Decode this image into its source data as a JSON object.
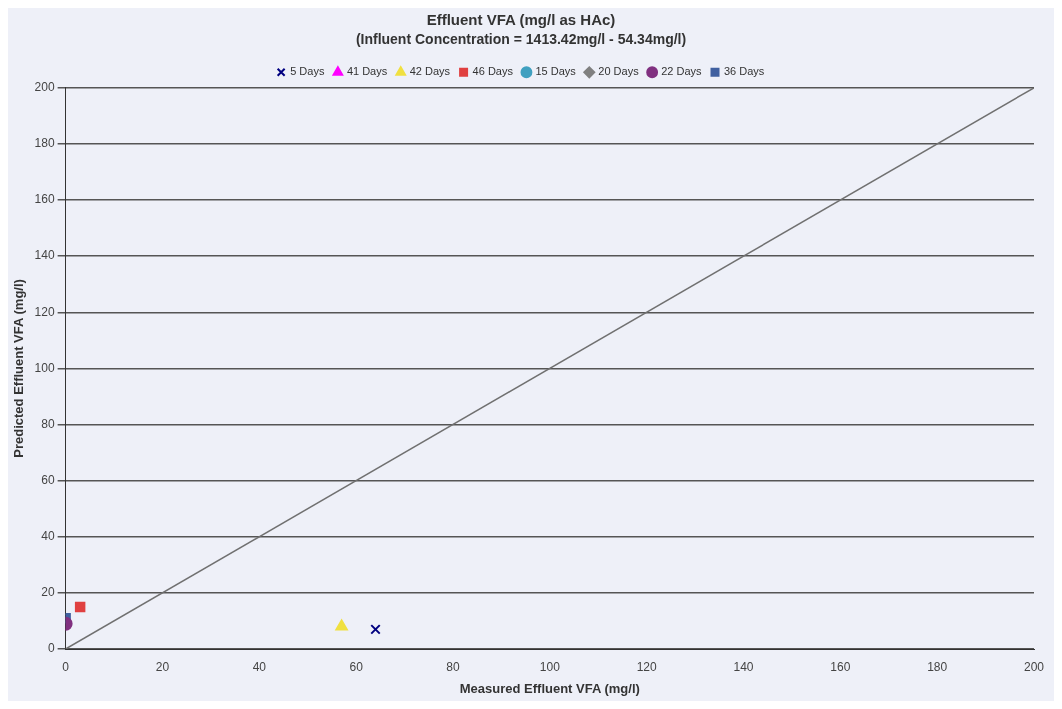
{
  "chart_data": {
    "type": "scatter",
    "title": "Effluent VFA (mg/l as HAc)",
    "subtitle": "(Influent Concentration = 1413.42mg/l - 54.34mg/l)",
    "xlabel": "Measured Effluent VFA (mg/l)",
    "ylabel": "Predicted Effluent VFA (mg/l)",
    "xlim": [
      0,
      200
    ],
    "ylim": [
      0,
      200
    ],
    "xticks": [
      0,
      20,
      40,
      60,
      80,
      100,
      120,
      140,
      160,
      180,
      200
    ],
    "yticks": [
      0,
      20,
      40,
      60,
      80,
      100,
      120,
      140,
      160,
      180,
      200
    ],
    "grid": "y",
    "legend": "top",
    "series": [
      {
        "name": "5 Days",
        "color": "#000080",
        "marker": "cross",
        "x": [
          64
        ],
        "values": [
          7
        ]
      },
      {
        "name": "41 Days",
        "color": "#ff00ff",
        "marker": "triangle"
      },
      {
        "name": "42 Days",
        "color": "#f0e040",
        "marker": "triangle",
        "x": [
          57
        ],
        "values": [
          8
        ]
      },
      {
        "name": "46 Days",
        "color": "#e04040",
        "marker": "square",
        "x": [
          3
        ],
        "values": [
          15
        ]
      },
      {
        "name": "15 Days",
        "color": "#40a0c0",
        "marker": "circle"
      },
      {
        "name": "20 Days",
        "color": "#808080",
        "marker": "diamond"
      },
      {
        "name": "22 Days",
        "color": "#803080",
        "marker": "circle",
        "x": [
          0
        ],
        "values": [
          9
        ]
      },
      {
        "name": "36 Days",
        "color": "#4060a0",
        "marker": "square",
        "x": [
          0
        ],
        "values": [
          11
        ]
      },
      {
        "type": "line",
        "color": "#707070",
        "marker": "none",
        "x": [
          0,
          200
        ],
        "values": [
          0,
          200
        ]
      }
    ]
  }
}
